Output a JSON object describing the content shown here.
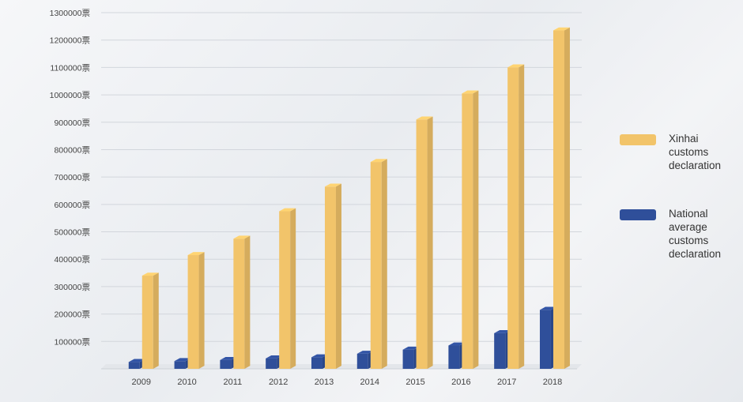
{
  "chart_data": {
    "type": "bar",
    "categories": [
      "2009",
      "2010",
      "2011",
      "2012",
      "2013",
      "2014",
      "2015",
      "2016",
      "2017",
      "2018"
    ],
    "series": [
      {
        "name": "National\naverage\ncustoms\ndeclaration",
        "color": "#2f4f9a",
        "values": [
          25000,
          28000,
          32000,
          38000,
          42000,
          55000,
          70000,
          85000,
          130000,
          215000
        ]
      },
      {
        "name": "Xinhai\ncustoms\ndeclaration",
        "color": "#f2c46a",
        "values": [
          340000,
          415000,
          475000,
          575000,
          665000,
          755000,
          910000,
          1005000,
          1100000,
          1235000
        ]
      }
    ],
    "y_ticks": [
      "100000票",
      "200000票",
      "300000票",
      "400000票",
      "500000票",
      "600000票",
      "700000票",
      "800000票",
      "900000票",
      "1000000票",
      "1100000票",
      "1200000票",
      "1300000票"
    ],
    "ylim": [
      0,
      1300000
    ],
    "legend_position": "right",
    "grid": true
  }
}
